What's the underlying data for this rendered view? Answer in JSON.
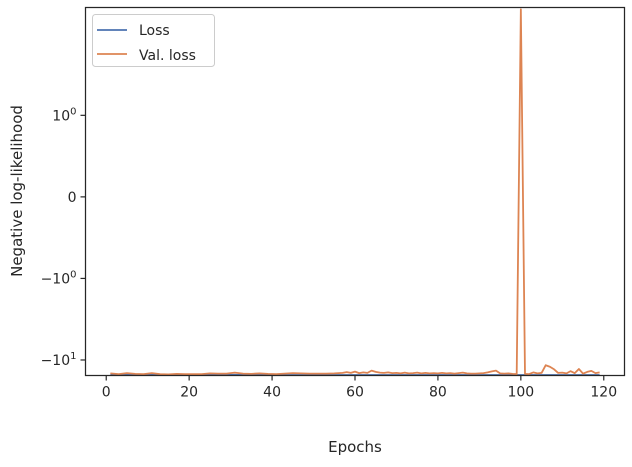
{
  "chart_data": {
    "type": "line",
    "title": "",
    "xlabel": "Epochs",
    "ylabel": "Negative log-likelihood",
    "yscale": "symlog",
    "xlim": [
      -5,
      125
    ],
    "ylim": [
      -15.5,
      21
    ],
    "grid": false,
    "legend_placement": "top-left",
    "x_ticks": [
      0,
      20,
      40,
      60,
      80,
      100,
      120
    ],
    "y_ticks": [
      {
        "value": 1,
        "base": "10",
        "exp": "0"
      },
      {
        "value": 0,
        "base": "0",
        "exp": ""
      },
      {
        "value": -1,
        "base": "−10",
        "exp": "0"
      },
      {
        "value": -10,
        "base": "−10",
        "exp": "1"
      }
    ],
    "series": [
      {
        "name": "Loss",
        "color": "#4c72b0",
        "x": [
          1,
          10,
          20,
          30,
          40,
          50,
          60,
          70,
          80,
          90,
          100,
          110,
          119
        ],
        "values": [
          -15.0,
          -15.1,
          -15.2,
          -15.2,
          -15.3,
          -15.3,
          -15.3,
          -15.3,
          -15.3,
          -15.3,
          -15.3,
          -15.3,
          -15.3
        ]
      },
      {
        "name": "Val. loss",
        "color": "#dd8452",
        "x": [
          1,
          3,
          5,
          7,
          9,
          11,
          13,
          15,
          17,
          19,
          21,
          23,
          25,
          27,
          29,
          31,
          33,
          35,
          37,
          39,
          41,
          43,
          45,
          47,
          49,
          51,
          53,
          55,
          57,
          58,
          59,
          60,
          61,
          62,
          63,
          64,
          65,
          66,
          67,
          68,
          69,
          70,
          71,
          72,
          73,
          74,
          75,
          76,
          77,
          78,
          79,
          80,
          81,
          82,
          83,
          84,
          85,
          86,
          87,
          88,
          89,
          90,
          91,
          92,
          93,
          94,
          95,
          96,
          97,
          98,
          99,
          100,
          101,
          102,
          103,
          104,
          105,
          106,
          107,
          108,
          109,
          110,
          111,
          112,
          113,
          114,
          115,
          116,
          117,
          118,
          119
        ],
        "values": [
          -14.6,
          -14.9,
          -14.5,
          -14.8,
          -14.9,
          -14.5,
          -14.9,
          -15.0,
          -14.8,
          -14.9,
          -14.9,
          -14.9,
          -14.6,
          -14.7,
          -14.7,
          -14.3,
          -14.7,
          -14.8,
          -14.6,
          -14.8,
          -14.9,
          -14.7,
          -14.5,
          -14.6,
          -14.7,
          -14.7,
          -14.7,
          -14.6,
          -14.4,
          -14.1,
          -14.4,
          -13.9,
          -14.5,
          -14.2,
          -14.4,
          -13.5,
          -14.0,
          -14.3,
          -14.4,
          -14.2,
          -14.5,
          -14.4,
          -14.6,
          -14.3,
          -14.6,
          -14.5,
          -14.3,
          -14.6,
          -14.4,
          -14.6,
          -14.5,
          -14.6,
          -14.4,
          -14.6,
          -14.5,
          -14.7,
          -14.5,
          -14.3,
          -14.6,
          -14.7,
          -14.7,
          -14.6,
          -14.5,
          -14.2,
          -13.8,
          -13.5,
          -14.6,
          -14.7,
          -14.6,
          -14.8,
          -14.9,
          20.0,
          -14.8,
          -14.9,
          -14.2,
          -14.6,
          -14.4,
          -11.6,
          -12.1,
          -13.0,
          -14.4,
          -14.3,
          -14.6,
          -13.7,
          -14.5,
          -12.9,
          -14.7,
          -14.0,
          -13.6,
          -14.5,
          -14.2
        ]
      }
    ]
  }
}
